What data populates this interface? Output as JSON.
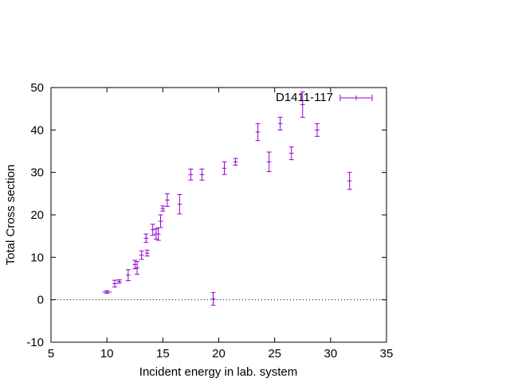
{
  "chart_data": {
    "type": "scatter",
    "title": "",
    "xlabel": "Incident energy in lab. system",
    "ylabel": "Total Cross section",
    "xlim": [
      5,
      35
    ],
    "ylim": [
      -10,
      50
    ],
    "x_ticks": [
      "5",
      "10",
      "15",
      "20",
      "25",
      "30",
      "35"
    ],
    "y_ticks": [
      "-10",
      "0",
      "10",
      "20",
      "30",
      "40",
      "50"
    ],
    "grid": false,
    "zero_line": true,
    "legend_position": "top-right",
    "series_color": "#9400d3",
    "series": [
      {
        "name": "D1411-117",
        "points": [
          {
            "x": 10.0,
            "y": 1.8,
            "dy": 0.3,
            "dx": 0.4
          },
          {
            "x": 10.7,
            "y": 3.8,
            "dy": 0.8,
            "dx": 0.2
          },
          {
            "x": 11.1,
            "y": 4.3,
            "dy": 0.4,
            "dx": 0.2
          },
          {
            "x": 11.9,
            "y": 5.8,
            "dy": 1.3,
            "dx": 0.2
          },
          {
            "x": 12.5,
            "y": 8.3,
            "dy": 1.0,
            "dx": 0.2
          },
          {
            "x": 12.7,
            "y": 7.5,
            "dy": 1.5,
            "dx": 0.2
          },
          {
            "x": 13.1,
            "y": 10.5,
            "dy": 1.0,
            "dx": 0.2
          },
          {
            "x": 13.5,
            "y": 14.5,
            "dy": 1.0,
            "dx": 0.2
          },
          {
            "x": 13.6,
            "y": 11.0,
            "dy": 0.7,
            "dx": 0.2
          },
          {
            "x": 14.1,
            "y": 16.5,
            "dy": 1.3,
            "dx": 0.2
          },
          {
            "x": 14.4,
            "y": 15.5,
            "dy": 1.2,
            "dx": 0.2
          },
          {
            "x": 14.6,
            "y": 15.5,
            "dy": 1.5,
            "dx": 0.2
          },
          {
            "x": 14.8,
            "y": 18.5,
            "dy": 1.5,
            "dx": 0.2
          },
          {
            "x": 15.0,
            "y": 21.5,
            "dy": 0.6,
            "dx": 0.2
          },
          {
            "x": 15.4,
            "y": 23.5,
            "dy": 1.5,
            "dx": 0.2
          },
          {
            "x": 16.5,
            "y": 22.5,
            "dy": 2.3,
            "dx": 0.2
          },
          {
            "x": 17.5,
            "y": 29.5,
            "dy": 1.3,
            "dx": 0.2
          },
          {
            "x": 18.5,
            "y": 29.5,
            "dy": 1.3,
            "dx": 0.2
          },
          {
            "x": 19.5,
            "y": 0.2,
            "dy": 1.5,
            "dx": 0.2
          },
          {
            "x": 20.5,
            "y": 31.0,
            "dy": 1.5,
            "dx": 0.2
          },
          {
            "x": 21.5,
            "y": 32.5,
            "dy": 0.8,
            "dx": 0.2
          },
          {
            "x": 23.5,
            "y": 39.5,
            "dy": 2.0,
            "dx": 0.2
          },
          {
            "x": 24.5,
            "y": 32.5,
            "dy": 2.3,
            "dx": 0.2
          },
          {
            "x": 25.5,
            "y": 41.5,
            "dy": 1.5,
            "dx": 0.2
          },
          {
            "x": 26.5,
            "y": 34.5,
            "dy": 1.5,
            "dx": 0.2
          },
          {
            "x": 27.5,
            "y": 46.0,
            "dy": 3.0,
            "dx": 0.2
          },
          {
            "x": 28.8,
            "y": 40.0,
            "dy": 1.5,
            "dx": 0.2
          },
          {
            "x": 31.7,
            "y": 28.0,
            "dy": 2.0,
            "dx": 0.2
          }
        ]
      }
    ]
  }
}
